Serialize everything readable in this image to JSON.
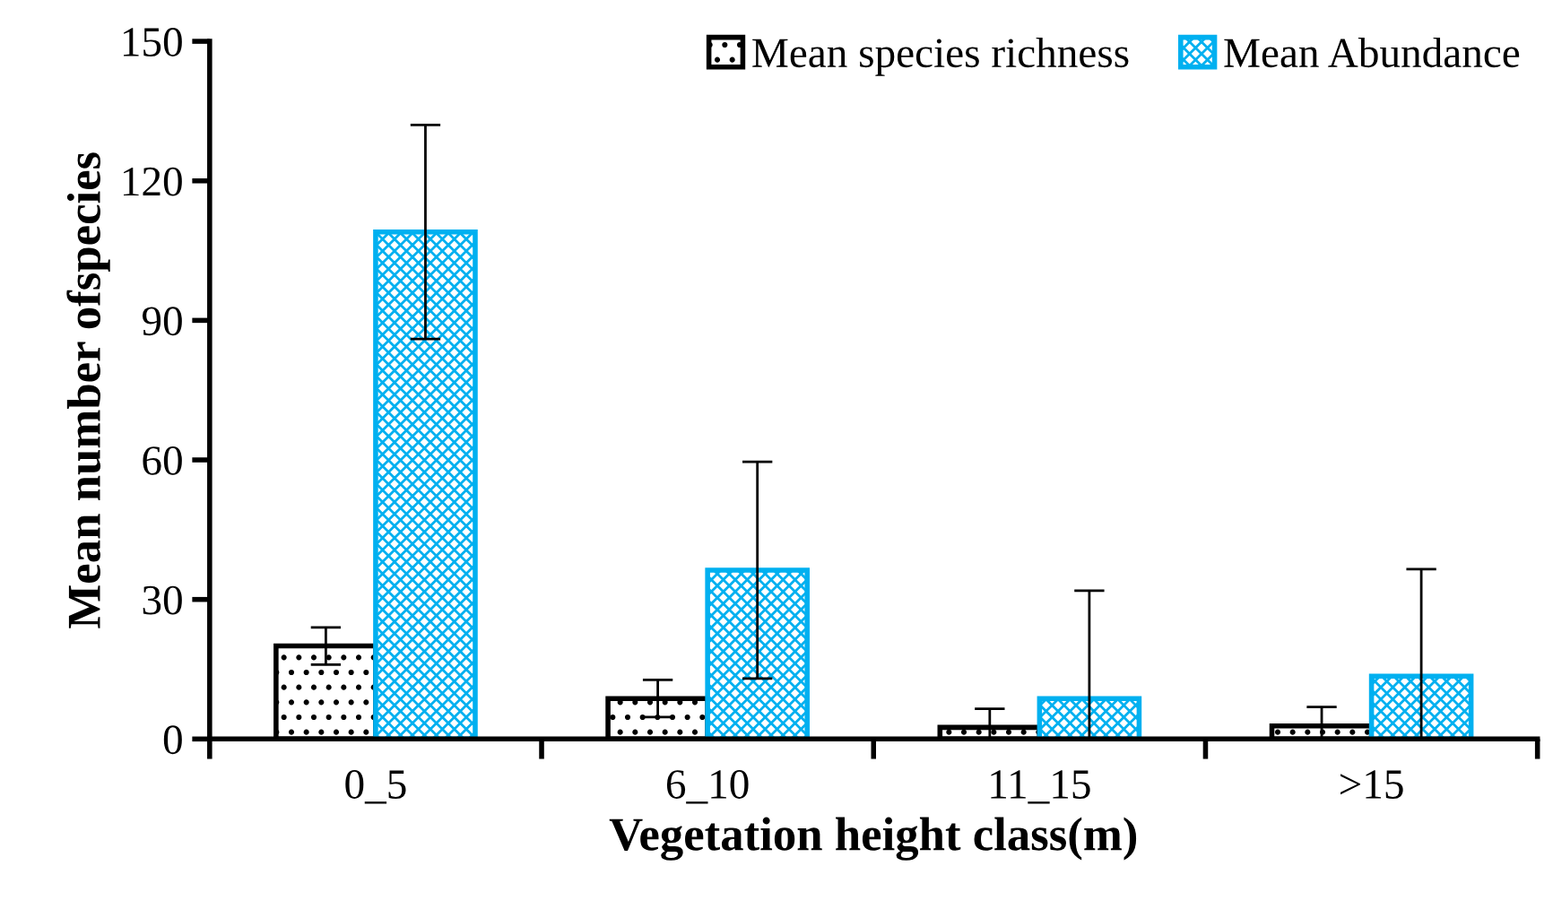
{
  "chart_data": {
    "type": "bar",
    "xlabel": "Vegetation height class(m)",
    "ylabel": "Mean number ofspecies",
    "categories": [
      "0_5",
      "6_10",
      "11_15",
      ">15"
    ],
    "series": [
      {
        "name": "Mean species richness",
        "color": "#000000",
        "values": [
          20,
          8.7,
          2.5,
          2.8
        ],
        "errors": [
          [
            16,
            24
          ],
          [
            4.7,
            12.7
          ],
          [
            0,
            6.5
          ],
          [
            0,
            6.9
          ]
        ]
      },
      {
        "name": "Mean Abundance",
        "color": "#00b0f0",
        "values": [
          109,
          36.3,
          8.7,
          13.5
        ],
        "errors": [
          [
            86,
            132
          ],
          [
            13,
            59.6
          ],
          [
            0,
            31.9
          ],
          [
            0,
            36.5
          ]
        ]
      }
    ],
    "ylim": [
      0,
      150
    ],
    "yticks": [
      0,
      30,
      60,
      90,
      120,
      150
    ],
    "grid": false,
    "legend": "top right"
  }
}
